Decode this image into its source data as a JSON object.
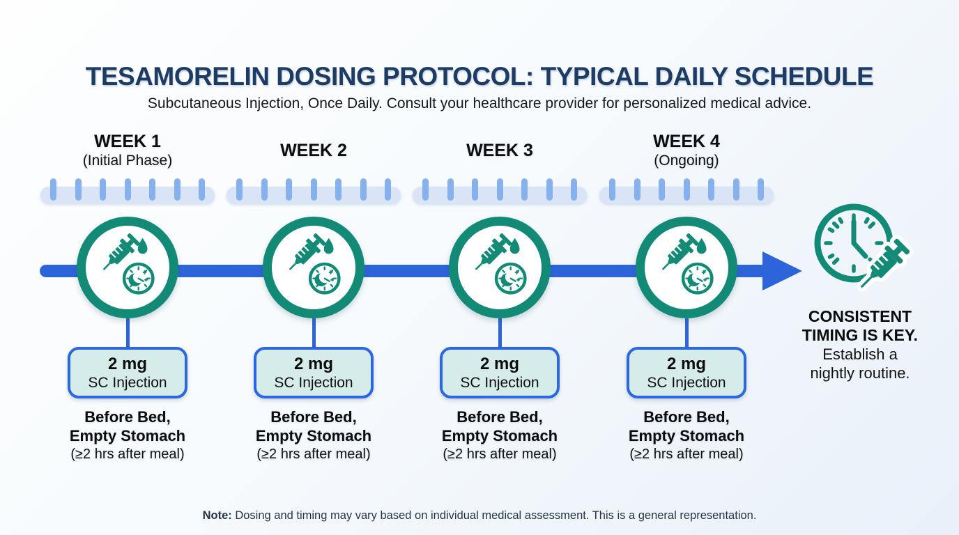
{
  "header": {
    "title": "TESAMORELIN DOSING PROTOCOL: TYPICAL DAILY SCHEDULE",
    "subtitle": "Subcutaneous Injection, Once Daily. Consult your healthcare provider for personalized medical advice."
  },
  "timeline": {
    "days_per_week": 7,
    "weeks": [
      {
        "label": "WEEK 1",
        "sublabel": "(Initial Phase)",
        "dose": "2 mg",
        "route": "SC Injection",
        "timing1": "Before Bed,",
        "timing2": "Empty Stomach",
        "timing3": "(≥2 hrs after meal)"
      },
      {
        "label": "WEEK 2",
        "sublabel": "",
        "dose": "2 mg",
        "route": "SC Injection",
        "timing1": "Before Bed,",
        "timing2": "Empty Stomach",
        "timing3": "(≥2 hrs after meal)"
      },
      {
        "label": "WEEK 3",
        "sublabel": "",
        "dose": "2 mg",
        "route": "SC Injection",
        "timing1": "Before Bed,",
        "timing2": "Empty Stomach",
        "timing3": "(≥2 hrs after meal)"
      },
      {
        "label": "WEEK 4",
        "sublabel": "(Ongoing)",
        "dose": "2 mg",
        "route": "SC Injection",
        "timing1": "Before Bed,",
        "timing2": "Empty Stomach",
        "timing3": "(≥2 hrs after meal)"
      }
    ]
  },
  "key_message": {
    "line1": "CONSISTENT",
    "line2": "TIMING IS KEY.",
    "line3": "Establish a",
    "line4": "nightly routine."
  },
  "note": {
    "label": "Note:",
    "text": " Dosing and timing may vary based on individual medical assessment. This is a general representation."
  },
  "colors": {
    "teal": "#128a76",
    "arrow_blue": "#2e64d9",
    "box_border_blue": "#2b67de",
    "dose_fill": "#d6ecea",
    "tick": "#86b1ec",
    "tick_bar": "#d9e5f7",
    "title_navy": "#1d3c64"
  },
  "icons": {
    "week_icon": "syringe-night-clock-icon",
    "key_icon": "clock-syringe-icon"
  }
}
